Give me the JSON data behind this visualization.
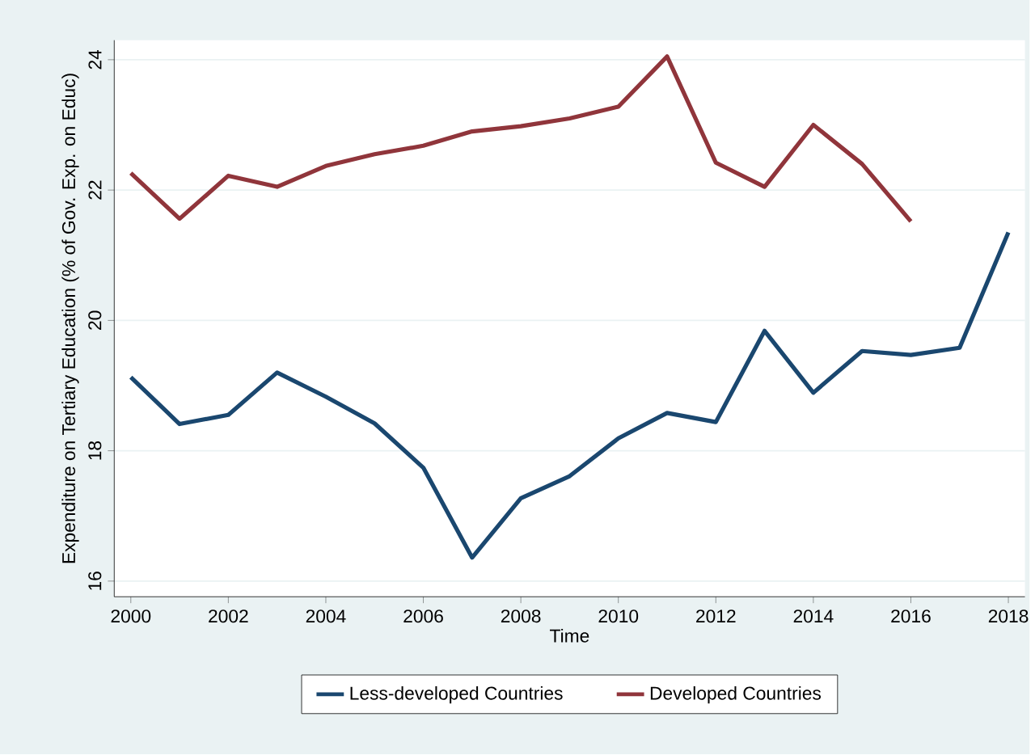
{
  "chart_data": {
    "type": "line",
    "xlabel": "Time",
    "ylabel": "Expenditure on Tertiary Education (% of Gov. Exp. on Educ)",
    "x": [
      2000,
      2001,
      2002,
      2003,
      2004,
      2005,
      2006,
      2007,
      2008,
      2009,
      2010,
      2011,
      2012,
      2013,
      2014,
      2015,
      2016,
      2017,
      2018
    ],
    "series": [
      {
        "name": "Less-developed Countries",
        "color": "#1a476f",
        "values": [
          19.13,
          18.41,
          18.55,
          19.2,
          18.83,
          18.42,
          17.74,
          16.36,
          17.27,
          17.61,
          18.19,
          18.58,
          18.44,
          19.84,
          18.89,
          19.53,
          19.47,
          19.58,
          21.35
        ]
      },
      {
        "name": "Developed Countries",
        "color": "#90353b",
        "values": [
          22.26,
          21.56,
          22.22,
          22.05,
          22.37,
          22.55,
          22.68,
          22.9,
          22.98,
          23.1,
          23.28,
          24.05,
          22.42,
          22.05,
          23.0,
          22.4,
          21.52,
          null,
          null
        ]
      }
    ],
    "xlim": [
      1999.66,
      2018.34
    ],
    "ylim": [
      15.76,
      24.3
    ],
    "xticks": [
      2000,
      2002,
      2004,
      2006,
      2008,
      2010,
      2012,
      2014,
      2016,
      2018
    ],
    "yticks": [
      16,
      18,
      20,
      22,
      24
    ],
    "grid": "y",
    "legend": "bottom",
    "marker": "none",
    "line_style": "solid"
  }
}
